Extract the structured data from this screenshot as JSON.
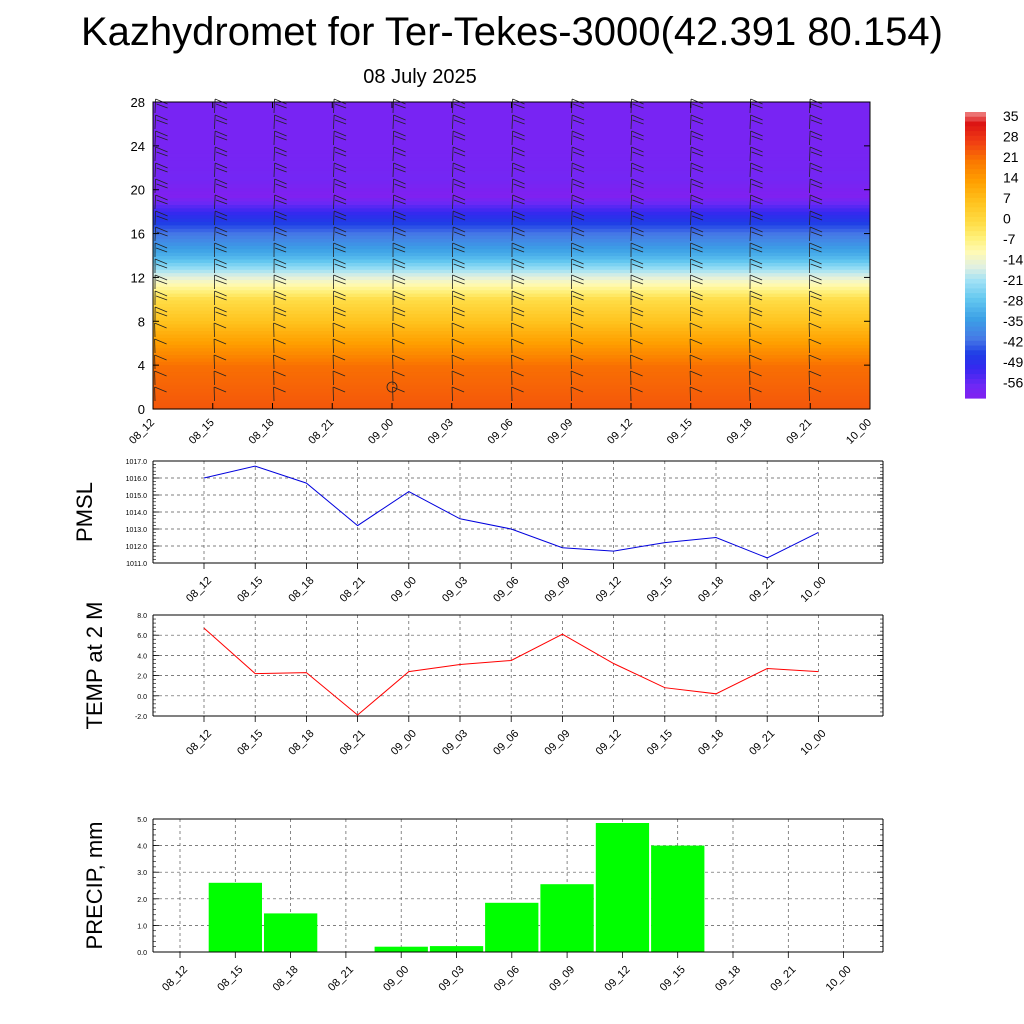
{
  "title": "Kazhydromet for Ter-Tekes-3000(42.391 80.154)",
  "subtitle": "08 July 2025",
  "chart_data": [
    {
      "type": "heatmap",
      "yticks": [
        0,
        4,
        8,
        12,
        16,
        20,
        24,
        28
      ],
      "ylim": [
        0,
        28
      ],
      "x_labels": [
        "08_12",
        "08_15",
        "08_18",
        "08_21",
        "09_00",
        "09_03",
        "09_06",
        "09_09",
        "09_12",
        "09_15",
        "09_18",
        "09_21",
        "10_00"
      ],
      "colorbar_labels": [
        "35",
        "28",
        "21",
        "14",
        "7",
        "0",
        "-7",
        "-14",
        "-21",
        "-28",
        "-35",
        "-42",
        "-49",
        "-56"
      ],
      "colorbar_range": [
        -60,
        38
      ],
      "temperature_profile_by_height": [
        [
          0,
          25
        ],
        [
          4,
          22
        ],
        [
          8,
          7
        ],
        [
          10,
          0
        ],
        [
          12,
          -14
        ],
        [
          14,
          -30
        ],
        [
          16,
          -40
        ],
        [
          18,
          -50
        ],
        [
          19.5,
          -60
        ],
        [
          21,
          -57
        ],
        [
          24,
          -58
        ],
        [
          28,
          -58
        ]
      ],
      "wind_barbs": "shown",
      "grid": false
    },
    {
      "type": "line",
      "ylabel": "PMSL",
      "ylim": [
        1011.0,
        1017.0
      ],
      "yticks": [
        "1011.0",
        "1012.0",
        "1013.0",
        "1014.0",
        "1015.0",
        "1016.0",
        "1017.0"
      ],
      "x": [
        "08_12",
        "08_15",
        "08_18",
        "08_21",
        "09_00",
        "09_03",
        "09_06",
        "09_09",
        "09_12",
        "09_15",
        "09_18",
        "09_21",
        "10_00"
      ],
      "values": [
        1016.0,
        1016.7,
        1015.7,
        1013.2,
        1015.2,
        1013.6,
        1013.0,
        1011.9,
        1011.7,
        1012.2,
        1012.5,
        1011.3,
        1012.8
      ],
      "color": "#0000dd",
      "grid": true
    },
    {
      "type": "line",
      "ylabel": "TEMP at 2 M",
      "ylim": [
        -2.0,
        8.0
      ],
      "yticks": [
        "-2.0",
        "0.0",
        "2.0",
        "4.0",
        "6.0",
        "8.0"
      ],
      "x": [
        "08_12",
        "08_15",
        "08_18",
        "08_21",
        "09_00",
        "09_03",
        "09_06",
        "09_09",
        "09_12",
        "09_15",
        "09_18",
        "09_21",
        "10_00"
      ],
      "values": [
        6.7,
        2.2,
        2.3,
        -1.9,
        2.4,
        3.1,
        3.5,
        6.1,
        3.2,
        0.8,
        0.2,
        2.7,
        2.4
      ],
      "color": "#ff0000",
      "grid": true
    },
    {
      "type": "bar",
      "ylabel": "PRECIP, mm",
      "ylim": [
        0.0,
        5.0
      ],
      "yticks": [
        "0.0",
        "1.0",
        "2.0",
        "3.0",
        "4.0",
        "5.0"
      ],
      "categories": [
        "08_12",
        "08_15",
        "08_18",
        "08_21",
        "09_00",
        "09_03",
        "09_06",
        "09_09",
        "09_12",
        "09_15",
        "09_18",
        "09_21",
        "10_00"
      ],
      "values": [
        0,
        2.6,
        1.45,
        0,
        0.2,
        0.22,
        1.85,
        2.55,
        4.85,
        4.0,
        0,
        0,
        0
      ],
      "color": "#00ff00",
      "grid": true
    }
  ]
}
